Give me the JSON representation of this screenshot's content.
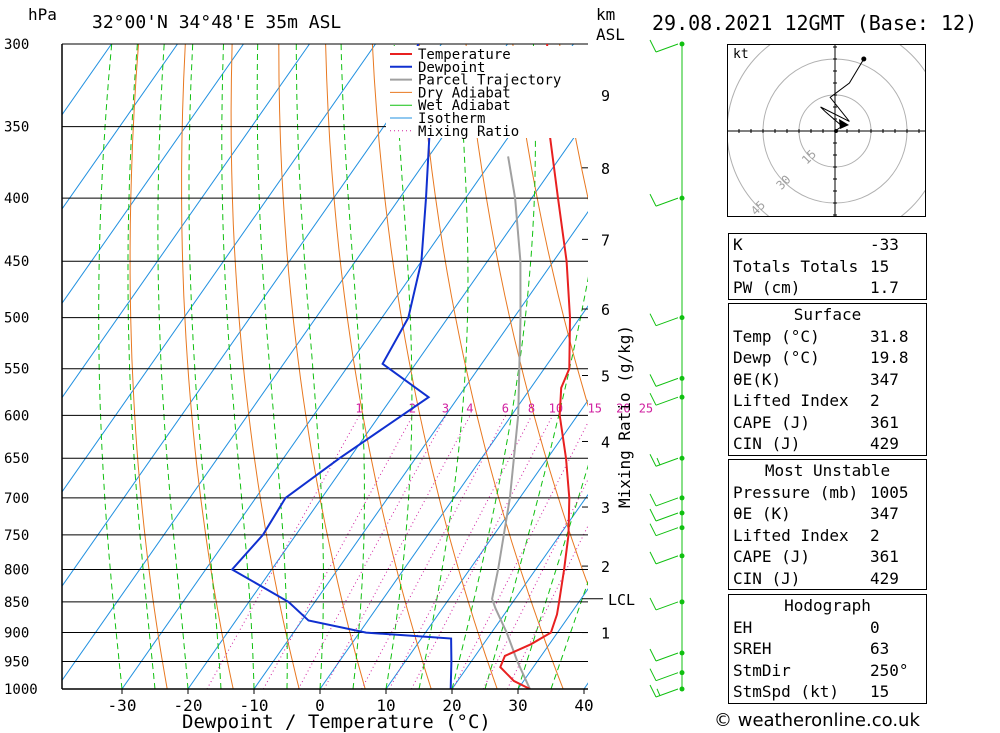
{
  "header": {
    "pressure_unit": "hPa",
    "location": "32°00'N  34°48'E  35m  ASL",
    "km_label": "km",
    "asl_label": "ASL",
    "datetime": "29.08.2021  12GMT  (Base: 12)"
  },
  "chart_data": {
    "type": "skew-t log-p",
    "xlabel": "Dewpoint / Temperature (°C)",
    "y2label": "Mixing Ratio (g/kg)",
    "pressure_levels": [
      300,
      350,
      400,
      450,
      500,
      550,
      600,
      650,
      700,
      750,
      800,
      850,
      900,
      950,
      1000
    ],
    "temperature_ticks": [
      -30,
      -20,
      -10,
      0,
      10,
      20,
      30,
      40
    ],
    "xlim": [
      -40,
      40
    ],
    "ylim": [
      1000,
      300
    ],
    "km_ticks": [
      {
        "label": "1",
        "p": 900
      },
      {
        "label": "2",
        "p": 795
      },
      {
        "label": "3",
        "p": 712
      },
      {
        "label": "4",
        "p": 630
      },
      {
        "label": "5",
        "p": 557
      },
      {
        "label": "6",
        "p": 492
      },
      {
        "label": "7",
        "p": 432
      },
      {
        "label": "8",
        "p": 378
      },
      {
        "label": "9",
        "p": 330
      }
    ],
    "lcl": {
      "label": "LCL",
      "p": 845
    },
    "mixing_ratio_labels": [
      "1",
      "2",
      "3",
      "4",
      "6",
      "8",
      "10",
      "15",
      "20",
      "25"
    ],
    "mixing_ratio_values": [
      1,
      2,
      3,
      4,
      6,
      8,
      10,
      15,
      20,
      25
    ],
    "legend": [
      "Temperature",
      "Dewpoint",
      "Parcel Trajectory",
      "Dry Adiabat",
      "Wet Adiabat",
      "Isotherm",
      "Mixing Ratio"
    ],
    "colors": {
      "temperature": "#e82020",
      "dewpoint": "#1030d0",
      "parcel": "#a0a0a0",
      "dry_adiabat": "#e87820",
      "wet_adiabat": "#10c010",
      "isotherm": "#2090e0",
      "mixing_ratio": "#d020a0",
      "wind_axis": "#10c010"
    },
    "temperature": [
      {
        "p": 1000,
        "t": 31.8
      },
      {
        "p": 985,
        "t": 28.5
      },
      {
        "p": 960,
        "t": 25.0
      },
      {
        "p": 940,
        "t": 24.5
      },
      {
        "p": 920,
        "t": 27.2
      },
      {
        "p": 900,
        "t": 29.0
      },
      {
        "p": 870,
        "t": 28.0
      },
      {
        "p": 850,
        "t": 27.0
      },
      {
        "p": 800,
        "t": 24.3
      },
      {
        "p": 750,
        "t": 21.3
      },
      {
        "p": 700,
        "t": 17.5
      },
      {
        "p": 650,
        "t": 12.8
      },
      {
        "p": 600,
        "t": 7.3
      },
      {
        "p": 570,
        "t": 4.6
      },
      {
        "p": 550,
        "t": 3.8
      },
      {
        "p": 500,
        "t": -1.5
      },
      {
        "p": 450,
        "t": -8.0
      },
      {
        "p": 400,
        "t": -16.0
      },
      {
        "p": 350,
        "t": -25.0
      },
      {
        "p": 320,
        "t": -31.0
      },
      {
        "p": 310,
        "t": -32.0
      },
      {
        "p": 300,
        "t": -34.0
      }
    ],
    "dewpoint": [
      {
        "p": 1000,
        "t": 19.8
      },
      {
        "p": 950,
        "t": 17.0
      },
      {
        "p": 910,
        "t": 14.5
      },
      {
        "p": 900,
        "t": 1.0
      },
      {
        "p": 880,
        "t": -9.0
      },
      {
        "p": 850,
        "t": -14.0
      },
      {
        "p": 800,
        "t": -26.0
      },
      {
        "p": 750,
        "t": -25.0
      },
      {
        "p": 700,
        "t": -25.5
      },
      {
        "p": 650,
        "t": -21.5
      },
      {
        "p": 580,
        "t": -14.5
      },
      {
        "p": 545,
        "t": -25.0
      },
      {
        "p": 500,
        "t": -26.0
      },
      {
        "p": 450,
        "t": -30.0
      },
      {
        "p": 400,
        "t": -36.0
      },
      {
        "p": 350,
        "t": -43.0
      },
      {
        "p": 320,
        "t": -52.0
      },
      {
        "p": 300,
        "t": -53.5
      }
    ],
    "parcel": [
      {
        "p": 1000,
        "t": 31.8
      },
      {
        "p": 950,
        "t": 27.0
      },
      {
        "p": 900,
        "t": 22.3
      },
      {
        "p": 860,
        "t": 18.0
      },
      {
        "p": 845,
        "t": 16.5
      },
      {
        "p": 800,
        "t": 14.3
      },
      {
        "p": 700,
        "t": 8.5
      },
      {
        "p": 600,
        "t": 1.0
      },
      {
        "p": 500,
        "t": -9.0
      },
      {
        "p": 450,
        "t": -15.0
      },
      {
        "p": 400,
        "t": -22.5
      },
      {
        "p": 370,
        "t": -28.0
      }
    ],
    "dry_adiabat_thetas_K": [
      250,
      260,
      270,
      280,
      290,
      300,
      310,
      320,
      330,
      340,
      350,
      360,
      370,
      380,
      390,
      400,
      410,
      420,
      430,
      440,
      450,
      460
    ],
    "wet_adiabat_surface_temps": [
      -30,
      -25,
      -20,
      -15,
      -10,
      -5,
      0,
      5,
      10,
      15,
      20,
      25,
      30,
      35
    ],
    "wind_barbs": [
      {
        "p": 1000,
        "speed_kt": 15
      },
      {
        "p": 970,
        "speed_kt": 10
      },
      {
        "p": 935,
        "speed_kt": 10
      },
      {
        "p": 850,
        "speed_kt": 10
      },
      {
        "p": 780,
        "speed_kt": 10
      },
      {
        "p": 740,
        "speed_kt": 10
      },
      {
        "p": 720,
        "speed_kt": 10
      },
      {
        "p": 700,
        "speed_kt": 10
      },
      {
        "p": 650,
        "speed_kt": 15
      },
      {
        "p": 580,
        "speed_kt": 10
      },
      {
        "p": 560,
        "speed_kt": 10
      },
      {
        "p": 500,
        "speed_kt": 10
      },
      {
        "p": 400,
        "speed_kt": 10
      },
      {
        "p": 300,
        "speed_kt": 10
      }
    ]
  },
  "hodograph": {
    "unit_label": "kt",
    "ring_labels": [
      "15",
      "30",
      "45"
    ],
    "trace_kt": [
      [
        0,
        0
      ],
      [
        3,
        2
      ],
      [
        -4,
        8
      ],
      [
        -6,
        10
      ],
      [
        6,
        4
      ],
      [
        -2,
        14
      ],
      [
        6,
        20
      ],
      [
        12,
        30
      ]
    ]
  },
  "indices": {
    "general": [
      {
        "label": "K",
        "value": "-33"
      },
      {
        "label": "Totals Totals",
        "value": "15"
      },
      {
        "label": "PW (cm)",
        "value": "1.7"
      }
    ],
    "surface_title": "Surface",
    "surface": [
      {
        "label": "Temp (°C)",
        "value": "31.8"
      },
      {
        "label": "Dewp (°C)",
        "value": "19.8"
      },
      {
        "label": "θE(K)",
        "value": "347"
      },
      {
        "label": "Lifted Index",
        "value": "2"
      },
      {
        "label": "CAPE (J)",
        "value": "361"
      },
      {
        "label": "CIN (J)",
        "value": "429"
      }
    ],
    "mu_title": "Most Unstable",
    "most_unstable": [
      {
        "label": "Pressure (mb)",
        "value": "1005"
      },
      {
        "label": "θE (K)",
        "value": "347"
      },
      {
        "label": "Lifted Index",
        "value": "2"
      },
      {
        "label": "CAPE (J)",
        "value": "361"
      },
      {
        "label": "CIN (J)",
        "value": "429"
      }
    ],
    "hodo_title": "Hodograph",
    "hodo_stats": [
      {
        "label": "EH",
        "value": "0"
      },
      {
        "label": "SREH",
        "value": "63"
      },
      {
        "label": "StmDir",
        "value": "250°"
      },
      {
        "label": "StmSpd (kt)",
        "value": "15"
      }
    ]
  },
  "footer": {
    "credit": "© weatheronline.co.uk"
  }
}
